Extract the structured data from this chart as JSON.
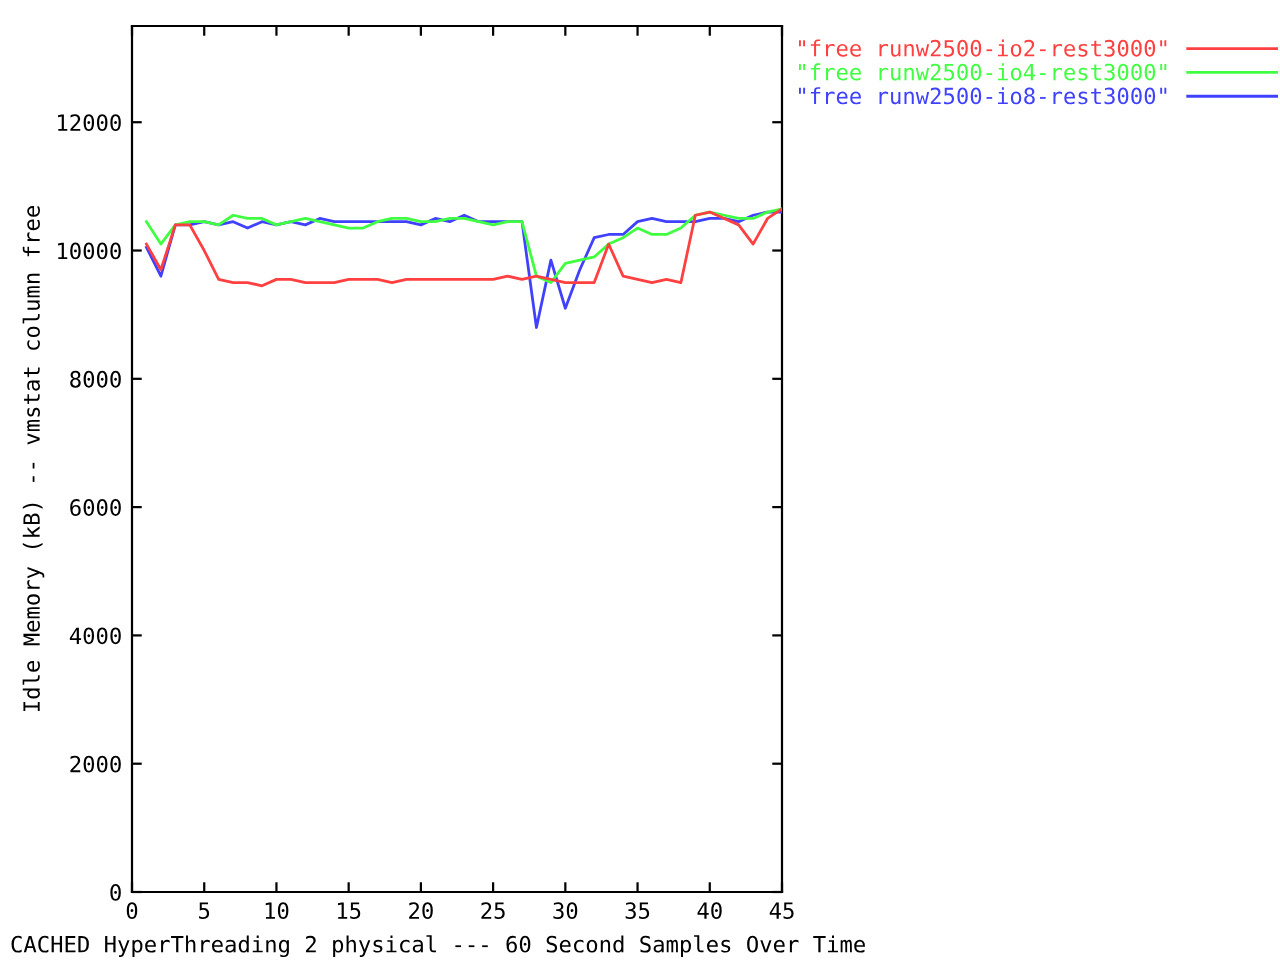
{
  "chart_data": {
    "type": "line",
    "xlabel": "CACHED HyperThreading 2 physical --- 60 Second Samples Over Time",
    "ylabel": "Idle Memory (kB) -- vmstat column free",
    "x": [
      1,
      2,
      3,
      4,
      5,
      6,
      7,
      8,
      9,
      10,
      11,
      12,
      13,
      14,
      15,
      16,
      17,
      18,
      19,
      20,
      21,
      22,
      23,
      24,
      25,
      26,
      27,
      28,
      29,
      30,
      31,
      32,
      33,
      34,
      35,
      36,
      37,
      38,
      39,
      40,
      41,
      42,
      43,
      44,
      45
    ],
    "series": [
      {
        "name": "\"free runw2500-io2-rest3000\"",
        "color": "#ff4040",
        "values": [
          10100,
          9700,
          10400,
          10400,
          10000,
          9550,
          9500,
          9500,
          9450,
          9550,
          9550,
          9500,
          9500,
          9500,
          9550,
          9550,
          9550,
          9500,
          9550,
          9550,
          9550,
          9550,
          9550,
          9550,
          9550,
          9600,
          9550,
          9600,
          9550,
          9500,
          9500,
          9500,
          10100,
          9600,
          9550,
          9500,
          9550,
          9500,
          10550,
          10600,
          10500,
          10400,
          10100,
          10500,
          10650
        ]
      },
      {
        "name": "\"free runw2500-io4-rest3000\"",
        "color": "#40ff40",
        "values": [
          10450,
          10100,
          10400,
          10450,
          10450,
          10400,
          10550,
          10500,
          10500,
          10400,
          10450,
          10500,
          10450,
          10400,
          10350,
          10350,
          10450,
          10500,
          10500,
          10450,
          10450,
          10500,
          10500,
          10450,
          10400,
          10450,
          10450,
          9600,
          9500,
          9800,
          9850,
          9900,
          10100,
          10200,
          10350,
          10250,
          10250,
          10350,
          10550,
          10600,
          10550,
          10500,
          10500,
          10600,
          10650
        ]
      },
      {
        "name": "\"free runw2500-io8-rest3000\"",
        "color": "#4040ff",
        "values": [
          10050,
          9600,
          10400,
          10400,
          10450,
          10400,
          10450,
          10350,
          10450,
          10400,
          10450,
          10400,
          10500,
          10450,
          10450,
          10450,
          10450,
          10450,
          10450,
          10400,
          10500,
          10450,
          10550,
          10450,
          10450,
          10450,
          10450,
          8800,
          9850,
          9100,
          9700,
          10200,
          10250,
          10250,
          10450,
          10500,
          10450,
          10450,
          10450,
          10500,
          10500,
          10450,
          10550,
          10600,
          10600
        ]
      }
    ],
    "xlim": [
      0,
      45
    ],
    "xticks": [
      0,
      5,
      10,
      15,
      20,
      25,
      30,
      35,
      40,
      45
    ],
    "ylim": [
      0,
      13500
    ],
    "yticks": [
      0,
      2000,
      4000,
      6000,
      8000,
      10000,
      12000
    ],
    "grid": false,
    "legend": "top right",
    "marker": "none",
    "line_style": "solid"
  }
}
